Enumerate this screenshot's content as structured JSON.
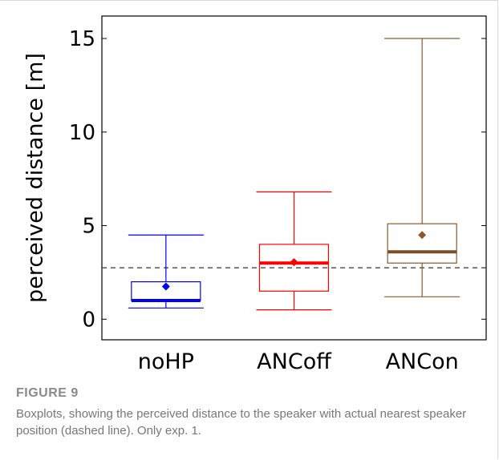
{
  "chart_data": {
    "type": "boxplot",
    "ylabel": "perceived distance [m]",
    "xlabel": "",
    "ylim": [
      -1.1,
      16.2
    ],
    "yticks": [
      0,
      5,
      10,
      15
    ],
    "grid": false,
    "categories": [
      "noHP",
      "ANCoff",
      "ANCon"
    ],
    "boxes": [
      {
        "category": "noHP",
        "color": "#0000ff",
        "median_color": "#0000ff",
        "whisker_low": 0.6,
        "q1": 1.0,
        "median": 1.0,
        "q3": 2.0,
        "whisker_high": 4.5,
        "mean": 1.75
      },
      {
        "category": "ANCoff",
        "color": "#ff0000",
        "median_color": "#ff0000",
        "whisker_low": 0.5,
        "q1": 1.5,
        "median": 3.0,
        "q3": 4.0,
        "whisker_high": 6.8,
        "mean": 3.05
      },
      {
        "category": "ANCon",
        "color": "#8b5a2b",
        "median_color": "#7a4f28",
        "whisker_low": 1.2,
        "q1": 3.0,
        "median": 3.6,
        "q3": 5.1,
        "whisker_high": 15.0,
        "mean": 4.5
      }
    ],
    "reference_line": {
      "y": 2.75,
      "style": "dashed",
      "color": "#333333"
    }
  },
  "caption": {
    "label": "FIGURE 9",
    "text": "Boxplots, showing the perceived distance to the speaker with actual nearest speaker position (dashed line). Only exp. 1."
  }
}
